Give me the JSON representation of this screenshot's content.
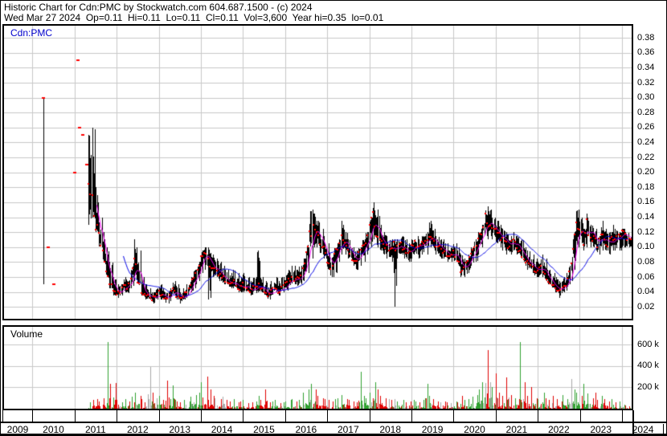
{
  "header": {
    "line1": "Historic Chart for Cdn:PMC by Stockwatch.com 604.687.1500 - (c) 2024",
    "line2": "Wed Mar 27 2024  Op=0.11  Hi=0.11  Lo=0.11  Cl=0.11  Vol=3,600  Year hi=0.35  lo=0.01"
  },
  "main_chart": {
    "label": "Cdn:PMC"
  },
  "volume_chart": {
    "label": "Volume"
  },
  "axes": {
    "price_ticks": [
      "0.38",
      "0.36",
      "0.34",
      "0.32",
      "0.30",
      "0.28",
      "0.26",
      "0.24",
      "0.22",
      "0.20",
      "0.18",
      "0.16",
      "0.14",
      "0.12",
      "0.10",
      "0.08",
      "0.06",
      "0.04",
      "0.02"
    ],
    "volume_ticks": [
      "600 k",
      "400 k",
      "200 k"
    ],
    "year_labels": [
      "2009",
      "2010",
      "2011",
      "2012",
      "2013",
      "2014",
      "2015",
      "2016",
      "2017",
      "2018",
      "2019",
      "2020",
      "2021",
      "2022",
      "2023",
      "2024"
    ]
  },
  "colors": {
    "grid": "#c8c8c8",
    "bar": "#000000",
    "close_dot": "#ff0000",
    "ma_short": "#ff00ff",
    "ma_long": "#0000e6",
    "vol_up": "#2fa12f",
    "vol_down": "#e00000",
    "vol_flat": "#a8a8a8",
    "symbol_blue": "#0000cc"
  },
  "chart_data": {
    "type": "candlestick+volume",
    "title": "Historic Chart for Cdn:PMC",
    "symbol": "Cdn:PMC",
    "x_range": [
      "2009-01",
      "2024-03"
    ],
    "price_axis": {
      "min": 0.02,
      "max": 0.38,
      "step": 0.02,
      "side": "right"
    },
    "volume_axis": {
      "ticks_k": [
        200,
        400,
        600
      ]
    },
    "grid": true,
    "overlays": [
      {
        "name": "weekly close markers",
        "style": "dots",
        "color": "#ff0000"
      },
      {
        "name": "short moving average (~10 wk)",
        "style": "line",
        "color": "#ff00ff"
      },
      {
        "name": "long moving average (~40 wk)",
        "style": "line",
        "color": "#0000e6"
      }
    ],
    "sparse_points": [
      {
        "t": "2010-04",
        "week": 1,
        "high": 0.3,
        "low": 0.05,
        "close": 0.3
      },
      {
        "t": "2010-05",
        "week": 2,
        "close": 0.1
      },
      {
        "t": "2010-07",
        "week": 0,
        "close": 0.05
      },
      {
        "t": "2011-01",
        "week": 0,
        "close": 0.2
      },
      {
        "t": "2011-02",
        "week": 0,
        "close": 0.35
      },
      {
        "t": "2011-02",
        "week": 2,
        "close": 0.26
      },
      {
        "t": "2011-03",
        "week": 1,
        "close": 0.25
      },
      {
        "t": "2011-04",
        "week": 2,
        "close": 0.21
      }
    ],
    "monthly_fields": [
      "month",
      "high",
      "low",
      "close",
      "volume_k",
      "volume_color(g=up,r=down,y=flat)"
    ],
    "monthly": [
      [
        "2011-05",
        0.25,
        0.13,
        0.2,
        60,
        "g"
      ],
      [
        "2011-06",
        0.26,
        0.14,
        0.16,
        80,
        "r"
      ],
      [
        "2011-07",
        0.18,
        0.12,
        0.13,
        90,
        "r"
      ],
      [
        "2011-08",
        0.14,
        0.1,
        0.115,
        70,
        "r"
      ],
      [
        "2011-09",
        0.12,
        0.08,
        0.09,
        100,
        "r"
      ],
      [
        "2011-10",
        0.1,
        0.06,
        0.07,
        620,
        "g"
      ],
      [
        "2011-11",
        0.08,
        0.045,
        0.05,
        230,
        "r"
      ],
      [
        "2011-12",
        0.06,
        0.035,
        0.042,
        240,
        "r"
      ],
      [
        "2012-01",
        0.05,
        0.032,
        0.038,
        80,
        "r"
      ],
      [
        "2012-02",
        0.05,
        0.035,
        0.04,
        60,
        "g"
      ],
      [
        "2012-03",
        0.06,
        0.04,
        0.05,
        90,
        "g"
      ],
      [
        "2012-04",
        0.055,
        0.038,
        0.045,
        70,
        "r"
      ],
      [
        "2012-05",
        0.07,
        0.045,
        0.06,
        110,
        "g"
      ],
      [
        "2012-06",
        0.11,
        0.055,
        0.09,
        150,
        "g"
      ],
      [
        "2012-07",
        0.095,
        0.05,
        0.055,
        120,
        "r"
      ],
      [
        "2012-08",
        0.06,
        0.035,
        0.04,
        90,
        "r"
      ],
      [
        "2012-09",
        0.05,
        0.03,
        0.035,
        60,
        "r"
      ],
      [
        "2012-10",
        0.045,
        0.03,
        0.035,
        390,
        "y"
      ],
      [
        "2012-11",
        0.04,
        0.025,
        0.03,
        150,
        "r"
      ],
      [
        "2012-12",
        0.045,
        0.03,
        0.035,
        100,
        "y"
      ],
      [
        "2013-01",
        0.05,
        0.03,
        0.04,
        120,
        "g"
      ],
      [
        "2013-02",
        0.045,
        0.03,
        0.035,
        80,
        "r"
      ],
      [
        "2013-03",
        0.04,
        0.025,
        0.03,
        260,
        "r"
      ],
      [
        "2013-04",
        0.045,
        0.028,
        0.035,
        90,
        "g"
      ],
      [
        "2013-05",
        0.055,
        0.035,
        0.045,
        215,
        "g"
      ],
      [
        "2013-06",
        0.05,
        0.03,
        0.035,
        70,
        "r"
      ],
      [
        "2013-07",
        0.04,
        0.025,
        0.03,
        60,
        "r"
      ],
      [
        "2013-08",
        0.045,
        0.03,
        0.035,
        80,
        "g"
      ],
      [
        "2013-09",
        0.05,
        0.032,
        0.04,
        70,
        "g"
      ],
      [
        "2013-10",
        0.06,
        0.04,
        0.05,
        110,
        "g"
      ],
      [
        "2013-11",
        0.07,
        0.045,
        0.06,
        130,
        "g"
      ],
      [
        "2013-12",
        0.08,
        0.055,
        0.07,
        150,
        "g"
      ],
      [
        "2014-01",
        0.095,
        0.065,
        0.085,
        250,
        "g"
      ],
      [
        "2014-02",
        0.1,
        0.07,
        0.095,
        300,
        "r"
      ],
      [
        "2014-03",
        0.1,
        0.03,
        0.08,
        180,
        "r"
      ],
      [
        "2014-04",
        0.09,
        0.06,
        0.075,
        120,
        "r"
      ],
      [
        "2014-05",
        0.085,
        0.06,
        0.07,
        100,
        "y"
      ],
      [
        "2014-06",
        0.08,
        0.055,
        0.065,
        90,
        "r"
      ],
      [
        "2014-07",
        0.075,
        0.05,
        0.06,
        110,
        "y"
      ],
      [
        "2014-08",
        0.07,
        0.05,
        0.055,
        80,
        "r"
      ],
      [
        "2014-09",
        0.065,
        0.045,
        0.05,
        70,
        "r"
      ],
      [
        "2014-10",
        0.07,
        0.045,
        0.055,
        90,
        "g"
      ],
      [
        "2014-11",
        0.065,
        0.04,
        0.05,
        60,
        "r"
      ],
      [
        "2014-12",
        0.06,
        0.04,
        0.045,
        70,
        "r"
      ],
      [
        "2015-01",
        0.065,
        0.04,
        0.05,
        80,
        "g"
      ],
      [
        "2015-02",
        0.06,
        0.04,
        0.045,
        50,
        "r"
      ],
      [
        "2015-03",
        0.055,
        0.035,
        0.04,
        60,
        "r"
      ],
      [
        "2015-04",
        0.06,
        0.038,
        0.045,
        70,
        "g"
      ],
      [
        "2015-05",
        0.095,
        0.04,
        0.05,
        120,
        "g"
      ],
      [
        "2015-06",
        0.06,
        0.04,
        0.045,
        80,
        "r"
      ],
      [
        "2015-07",
        0.055,
        0.035,
        0.04,
        180,
        "r"
      ],
      [
        "2015-08",
        0.05,
        0.03,
        0.035,
        60,
        "r"
      ],
      [
        "2015-09",
        0.055,
        0.035,
        0.04,
        70,
        "g"
      ],
      [
        "2015-10",
        0.06,
        0.04,
        0.045,
        80,
        "g"
      ],
      [
        "2015-11",
        0.055,
        0.035,
        0.04,
        50,
        "r"
      ],
      [
        "2015-12",
        0.06,
        0.04,
        0.045,
        60,
        "g"
      ],
      [
        "2016-01",
        0.065,
        0.042,
        0.05,
        70,
        "g"
      ],
      [
        "2016-02",
        0.07,
        0.048,
        0.055,
        80,
        "g"
      ],
      [
        "2016-03",
        0.075,
        0.05,
        0.06,
        90,
        "g"
      ],
      [
        "2016-04",
        0.07,
        0.048,
        0.055,
        70,
        "r"
      ],
      [
        "2016-05",
        0.075,
        0.05,
        0.06,
        80,
        "g"
      ],
      [
        "2016-06",
        0.085,
        0.055,
        0.07,
        150,
        "g"
      ],
      [
        "2016-07",
        0.1,
        0.065,
        0.09,
        180,
        "g"
      ],
      [
        "2016-08",
        0.15,
        0.085,
        0.12,
        230,
        "g"
      ],
      [
        "2016-09",
        0.145,
        0.1,
        0.13,
        180,
        "r"
      ],
      [
        "2016-10",
        0.135,
        0.1,
        0.12,
        120,
        "r"
      ],
      [
        "2016-11",
        0.125,
        0.09,
        0.105,
        100,
        "r"
      ],
      [
        "2016-12",
        0.115,
        0.085,
        0.1,
        90,
        "r"
      ],
      [
        "2017-01",
        0.105,
        0.07,
        0.08,
        80,
        "r"
      ],
      [
        "2017-02",
        0.09,
        0.06,
        0.07,
        70,
        "r"
      ],
      [
        "2017-03",
        0.1,
        0.065,
        0.09,
        90,
        "g"
      ],
      [
        "2017-04",
        0.11,
        0.08,
        0.1,
        100,
        "g"
      ],
      [
        "2017-05",
        0.135,
        0.09,
        0.11,
        130,
        "g"
      ],
      [
        "2017-06",
        0.12,
        0.09,
        0.105,
        90,
        "r"
      ],
      [
        "2017-07",
        0.11,
        0.085,
        0.095,
        80,
        "r"
      ],
      [
        "2017-08",
        0.1,
        0.075,
        0.085,
        70,
        "r"
      ],
      [
        "2017-09",
        0.095,
        0.07,
        0.08,
        60,
        "r"
      ],
      [
        "2017-10",
        0.1,
        0.075,
        0.09,
        345,
        "g"
      ],
      [
        "2017-11",
        0.11,
        0.08,
        0.1,
        120,
        "g"
      ],
      [
        "2017-12",
        0.12,
        0.09,
        0.105,
        100,
        "g"
      ],
      [
        "2018-01",
        0.14,
        0.1,
        0.125,
        150,
        "g"
      ],
      [
        "2018-02",
        0.16,
        0.11,
        0.145,
        250,
        "g"
      ],
      [
        "2018-03",
        0.15,
        0.1,
        0.12,
        180,
        "r"
      ],
      [
        "2018-04",
        0.13,
        0.095,
        0.11,
        120,
        "r"
      ],
      [
        "2018-05",
        0.12,
        0.09,
        0.1,
        100,
        "r"
      ],
      [
        "2018-06",
        0.115,
        0.085,
        0.1,
        90,
        "y"
      ],
      [
        "2018-07",
        0.11,
        0.08,
        0.095,
        80,
        "r"
      ],
      [
        "2018-08",
        0.11,
        0.02,
        0.1,
        90,
        "y"
      ],
      [
        "2018-09",
        0.11,
        0.085,
        0.1,
        70,
        "g"
      ],
      [
        "2018-10",
        0.115,
        0.09,
        0.105,
        80,
        "g"
      ],
      [
        "2018-11",
        0.11,
        0.085,
        0.095,
        60,
        "r"
      ],
      [
        "2018-12",
        0.105,
        0.08,
        0.09,
        70,
        "r"
      ],
      [
        "2019-01",
        0.11,
        0.085,
        0.1,
        80,
        "g"
      ],
      [
        "2019-02",
        0.115,
        0.09,
        0.105,
        70,
        "g"
      ],
      [
        "2019-03",
        0.11,
        0.085,
        0.1,
        60,
        "r"
      ],
      [
        "2019-04",
        0.115,
        0.09,
        0.105,
        80,
        "g"
      ],
      [
        "2019-05",
        0.12,
        0.09,
        0.11,
        230,
        "g"
      ],
      [
        "2019-06",
        0.135,
        0.1,
        0.115,
        120,
        "g"
      ],
      [
        "2019-07",
        0.125,
        0.095,
        0.11,
        90,
        "r"
      ],
      [
        "2019-08",
        0.115,
        0.09,
        0.1,
        70,
        "r"
      ],
      [
        "2019-09",
        0.11,
        0.085,
        0.1,
        60,
        "y"
      ],
      [
        "2019-10",
        0.11,
        0.085,
        0.095,
        70,
        "r"
      ],
      [
        "2019-11",
        0.105,
        0.08,
        0.09,
        60,
        "r"
      ],
      [
        "2019-12",
        0.1,
        0.08,
        0.09,
        50,
        "y"
      ],
      [
        "2020-01",
        0.105,
        0.08,
        0.095,
        70,
        "g"
      ],
      [
        "2020-02",
        0.1,
        0.075,
        0.085,
        60,
        "r"
      ],
      [
        "2020-03",
        0.09,
        0.06,
        0.07,
        120,
        "r"
      ],
      [
        "2020-04",
        0.085,
        0.06,
        0.075,
        80,
        "g"
      ],
      [
        "2020-05",
        0.09,
        0.065,
        0.08,
        90,
        "g"
      ],
      [
        "2020-06",
        0.1,
        0.075,
        0.09,
        110,
        "g"
      ],
      [
        "2020-07",
        0.11,
        0.08,
        0.1,
        130,
        "g"
      ],
      [
        "2020-08",
        0.12,
        0.09,
        0.11,
        180,
        "g"
      ],
      [
        "2020-09",
        0.13,
        0.1,
        0.12,
        250,
        "g"
      ],
      [
        "2020-10",
        0.155,
        0.11,
        0.14,
        550,
        "r"
      ],
      [
        "2020-11",
        0.15,
        0.115,
        0.13,
        250,
        "y"
      ],
      [
        "2020-12",
        0.14,
        0.11,
        0.125,
        200,
        "g"
      ],
      [
        "2021-01",
        0.135,
        0.105,
        0.12,
        330,
        "r"
      ],
      [
        "2021-02",
        0.13,
        0.1,
        0.115,
        150,
        "r"
      ],
      [
        "2021-03",
        0.125,
        0.095,
        0.11,
        120,
        "r"
      ],
      [
        "2021-04",
        0.12,
        0.09,
        0.105,
        290,
        "r"
      ],
      [
        "2021-05",
        0.115,
        0.09,
        0.1,
        130,
        "r"
      ],
      [
        "2021-06",
        0.12,
        0.095,
        0.11,
        100,
        "g"
      ],
      [
        "2021-07",
        0.115,
        0.09,
        0.1,
        90,
        "r"
      ],
      [
        "2021-08",
        0.11,
        0.085,
        0.095,
        620,
        "g"
      ],
      [
        "2021-09",
        0.1,
        0.075,
        0.085,
        250,
        "r"
      ],
      [
        "2021-10",
        0.095,
        0.07,
        0.08,
        120,
        "r"
      ],
      [
        "2021-11",
        0.09,
        0.065,
        0.075,
        200,
        "r"
      ],
      [
        "2021-12",
        0.085,
        0.06,
        0.07,
        100,
        "r"
      ],
      [
        "2022-01",
        0.08,
        0.06,
        0.07,
        90,
        "g"
      ],
      [
        "2022-02",
        0.09,
        0.06,
        0.075,
        150,
        "g"
      ],
      [
        "2022-03",
        0.085,
        0.055,
        0.065,
        100,
        "r"
      ],
      [
        "2022-04",
        0.07,
        0.05,
        0.055,
        80,
        "r"
      ],
      [
        "2022-05",
        0.065,
        0.045,
        0.05,
        120,
        "r"
      ],
      [
        "2022-06",
        0.06,
        0.04,
        0.045,
        90,
        "r"
      ],
      [
        "2022-07",
        0.055,
        0.032,
        0.042,
        70,
        "r"
      ],
      [
        "2022-08",
        0.06,
        0.04,
        0.048,
        130,
        "g"
      ],
      [
        "2022-09",
        0.065,
        0.042,
        0.05,
        90,
        "g"
      ],
      [
        "2022-10",
        0.075,
        0.05,
        0.065,
        280,
        "y"
      ],
      [
        "2022-11",
        0.12,
        0.07,
        0.1,
        180,
        "g"
      ],
      [
        "2022-12",
        0.15,
        0.1,
        0.13,
        150,
        "g"
      ],
      [
        "2023-01",
        0.14,
        0.105,
        0.125,
        120,
        "r"
      ],
      [
        "2023-02",
        0.125,
        0.095,
        0.105,
        230,
        "g"
      ],
      [
        "2023-03",
        0.145,
        0.1,
        0.135,
        140,
        "g"
      ],
      [
        "2023-04",
        0.13,
        0.1,
        0.11,
        100,
        "r"
      ],
      [
        "2023-05",
        0.125,
        0.095,
        0.115,
        150,
        "r"
      ],
      [
        "2023-06",
        0.115,
        0.09,
        0.1,
        80,
        "r"
      ],
      [
        "2023-07",
        0.135,
        0.095,
        0.12,
        120,
        "g"
      ],
      [
        "2023-08",
        0.125,
        0.095,
        0.11,
        90,
        "r"
      ],
      [
        "2023-09",
        0.12,
        0.09,
        0.105,
        70,
        "r"
      ],
      [
        "2023-10",
        0.13,
        0.095,
        0.115,
        90,
        "g"
      ],
      [
        "2023-11",
        0.125,
        0.095,
        0.11,
        60,
        "r"
      ],
      [
        "2023-12",
        0.12,
        0.095,
        0.115,
        70,
        "g"
      ],
      [
        "2024-01",
        0.125,
        0.1,
        0.12,
        40,
        "g"
      ],
      [
        "2024-02",
        0.12,
        0.1,
        0.115,
        30,
        "r"
      ],
      [
        "2024-03",
        0.115,
        0.1,
        0.11,
        20,
        "r"
      ]
    ]
  }
}
